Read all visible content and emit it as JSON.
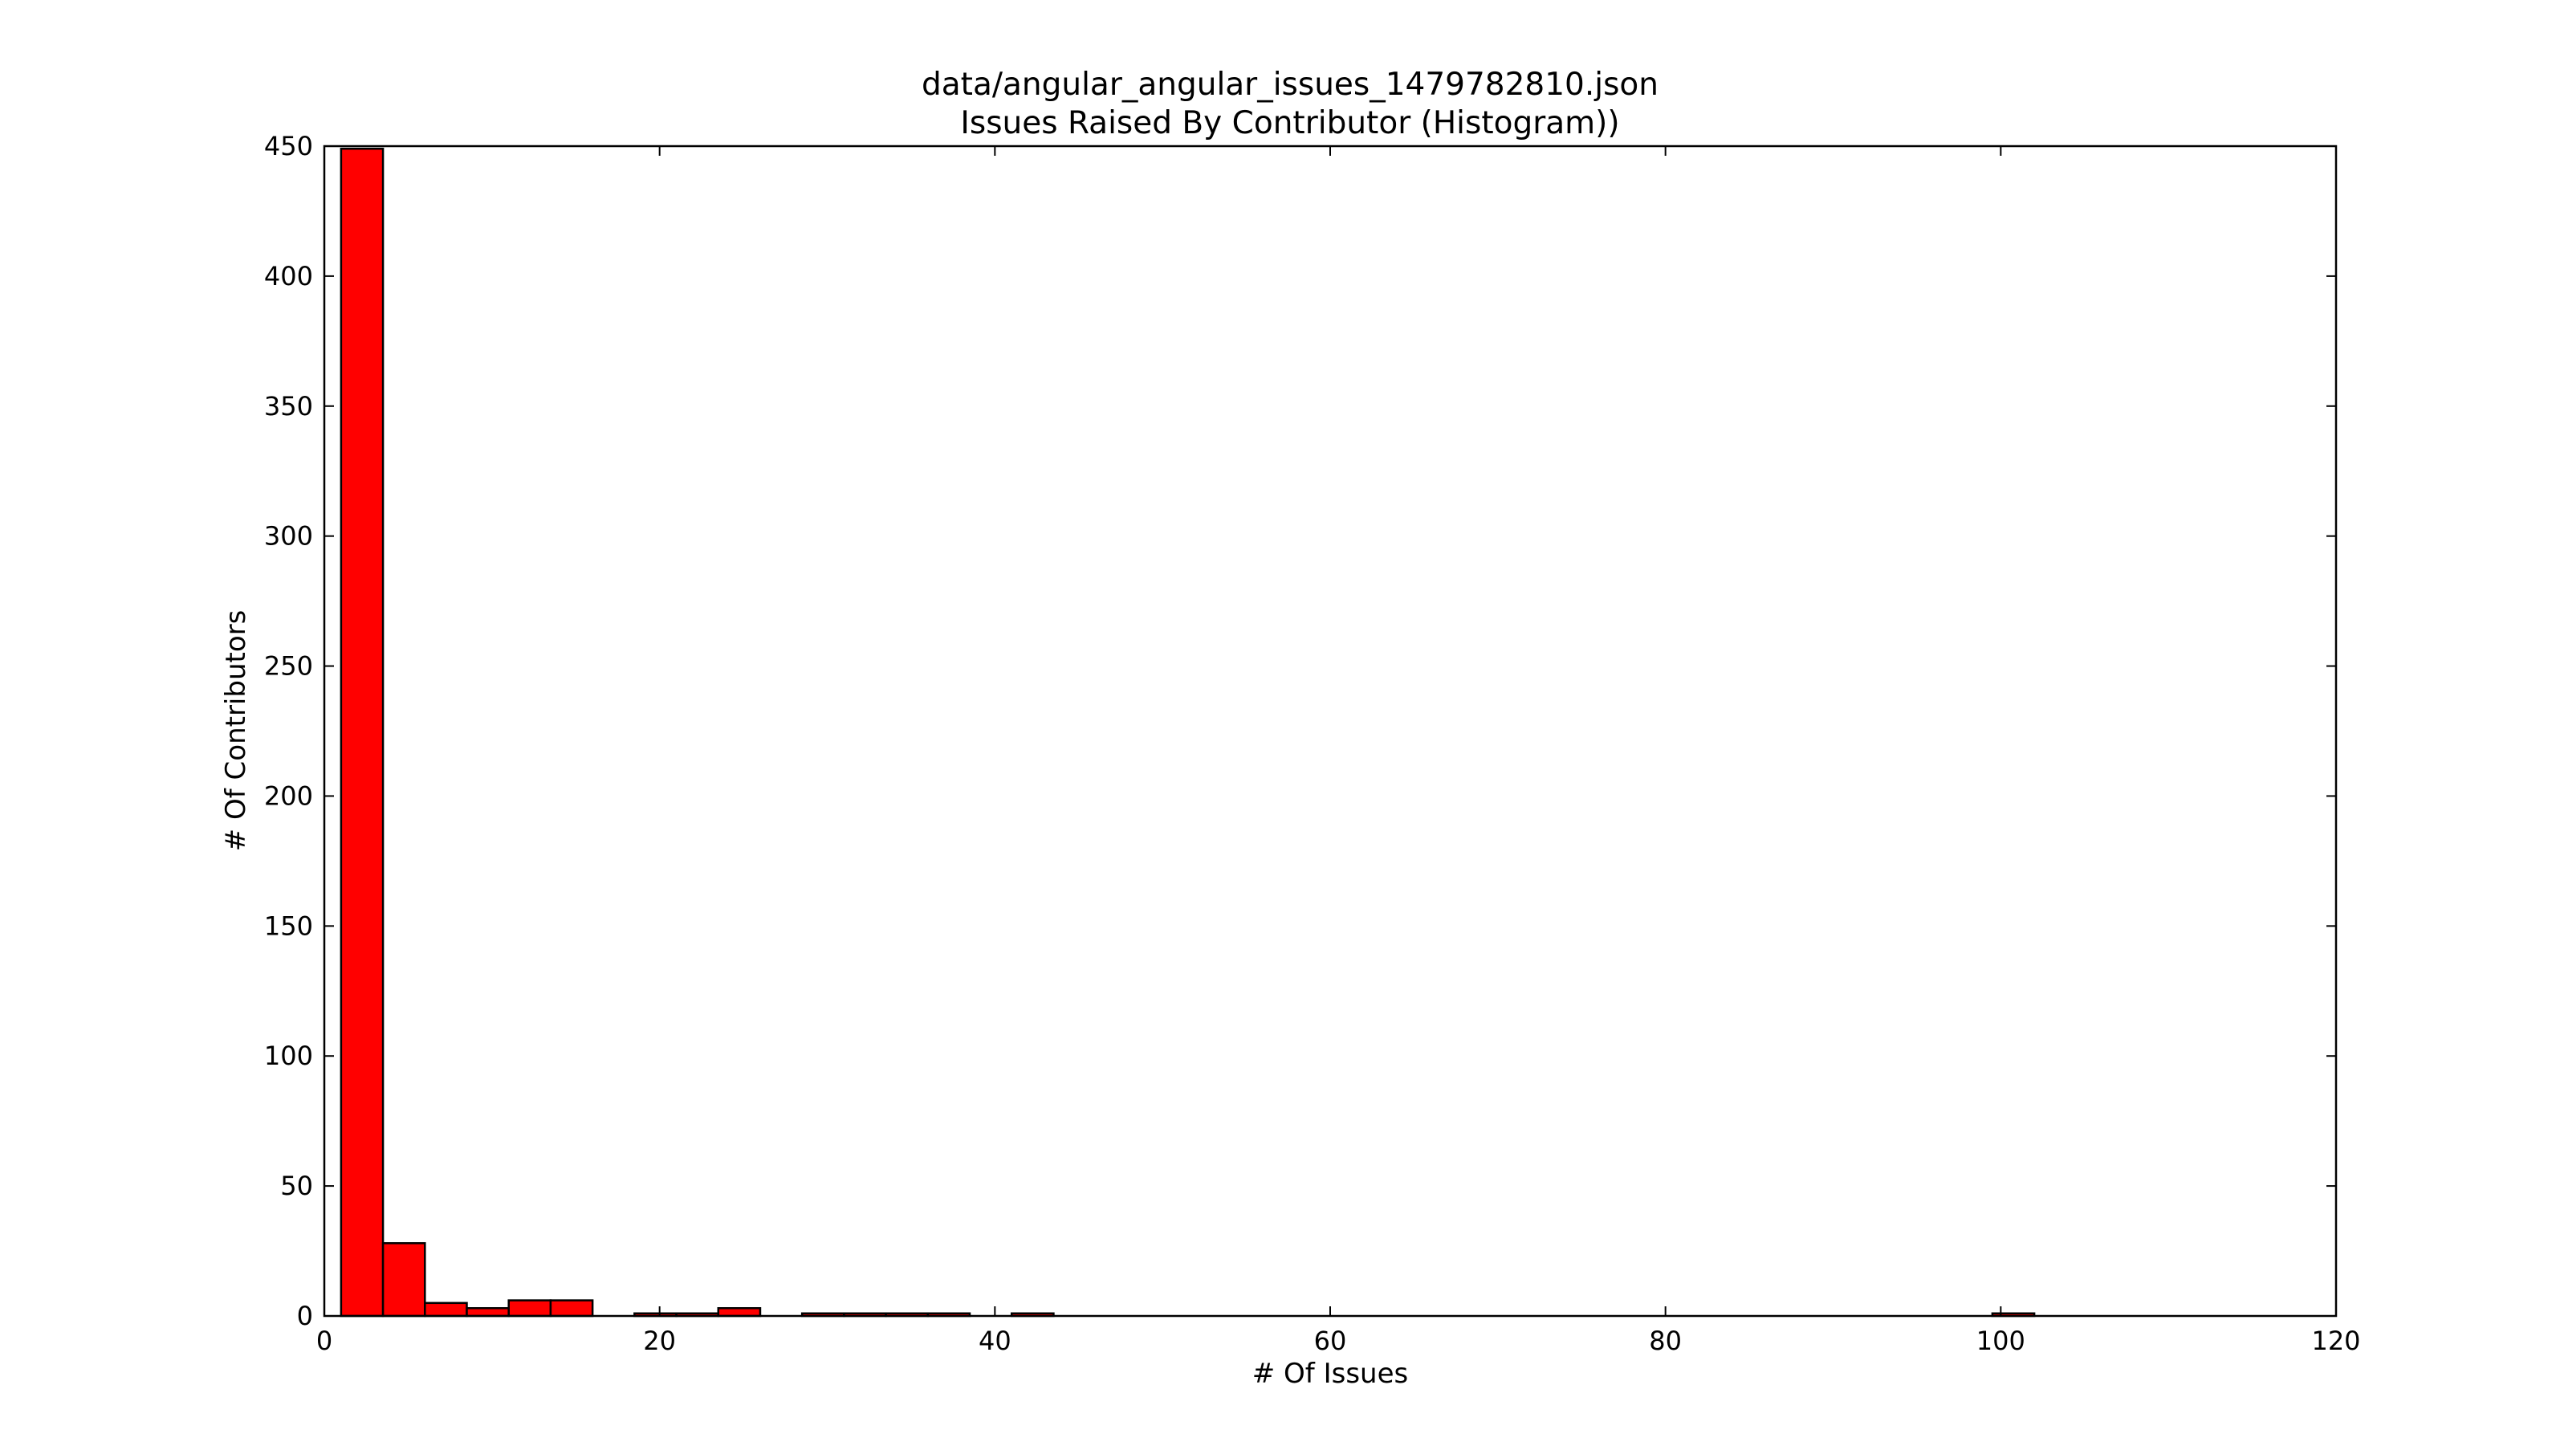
{
  "chart_data": {
    "type": "bar",
    "title": "data/angular_angular_issues_1479782810.json",
    "subtitle": "Issues Raised By Contributor (Histogram))",
    "xlabel": "# Of Issues",
    "ylabel": "# Of Contributors",
    "xlim": [
      0,
      120
    ],
    "ylim": [
      0,
      450
    ],
    "xticks": [
      "0",
      "20",
      "40",
      "60",
      "80",
      "100",
      "120"
    ],
    "yticks": [
      "0",
      "50",
      "100",
      "150",
      "200",
      "250",
      "300",
      "350",
      "400",
      "450"
    ],
    "grid": false,
    "bar_color": "#ff0000",
    "edge_color": "#000000",
    "bins": [
      {
        "x0": 1.0,
        "x1": 3.5,
        "count": 449
      },
      {
        "x0": 3.5,
        "x1": 6.0,
        "count": 28
      },
      {
        "x0": 6.0,
        "x1": 8.5,
        "count": 5
      },
      {
        "x0": 8.5,
        "x1": 11.0,
        "count": 3
      },
      {
        "x0": 11.0,
        "x1": 13.5,
        "count": 6
      },
      {
        "x0": 13.5,
        "x1": 16.0,
        "count": 6
      },
      {
        "x0": 18.5,
        "x1": 21.0,
        "count": 1
      },
      {
        "x0": 21.0,
        "x1": 23.5,
        "count": 1
      },
      {
        "x0": 23.5,
        "x1": 26.0,
        "count": 3
      },
      {
        "x0": 28.5,
        "x1": 31.0,
        "count": 1
      },
      {
        "x0": 31.0,
        "x1": 33.5,
        "count": 1
      },
      {
        "x0": 33.5,
        "x1": 36.0,
        "count": 1
      },
      {
        "x0": 36.0,
        "x1": 38.5,
        "count": 1
      },
      {
        "x0": 41.0,
        "x1": 43.5,
        "count": 1
      },
      {
        "x0": 99.5,
        "x1": 102.0,
        "count": 1
      }
    ]
  }
}
